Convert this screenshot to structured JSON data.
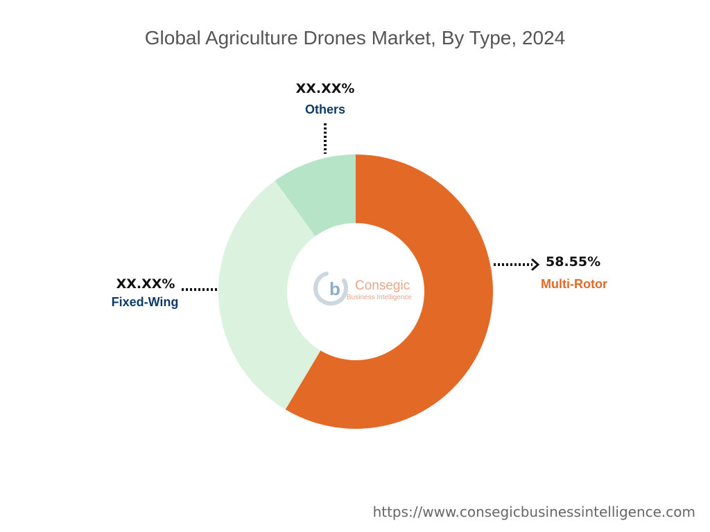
{
  "chart_data": {
    "type": "pie",
    "variant": "donut",
    "title": "Global Agriculture Drones Market, By Type, 2024",
    "slices": [
      {
        "label": "Multi-Rotor",
        "value": 58.55,
        "display_value": "58.55%",
        "color": "#E36A26",
        "label_color": "#E36A26"
      },
      {
        "label": "Fixed-Wing",
        "value": 31.45,
        "display_value": "XX.XX%",
        "color": "#DAF2DE",
        "label_color": "#0D3B66"
      },
      {
        "label": "Others",
        "value": 10.0,
        "display_value": "XX.XX%",
        "color": "#B6E4C7",
        "label_color": "#0D3B66"
      }
    ],
    "start_angle_deg": 0,
    "direction": "clockwise",
    "legend": "none",
    "label_position": "outside with dotted leader lines"
  },
  "watermark": {
    "logo_letter": "b",
    "name": "Consegic",
    "tagline": "Business Intelligence",
    "colors": {
      "name": "#E8A589",
      "tagline": "#E8A589",
      "logo": "#C8D3DC"
    }
  },
  "footer": {
    "url": "https://www.consegicbusinessintelligence.com"
  }
}
